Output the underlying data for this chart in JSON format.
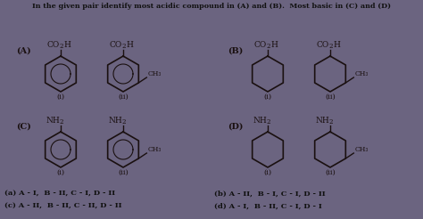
{
  "title": "In the given pair identify most acidic compound in (A) and (B).  Most basic in (C) and (D)",
  "bg_color": "#6b6480",
  "text_color": "#1a1010",
  "answers": [
    "(a) A - I,  B - II, C - I, D - II",
    "(c) A - II,  B - II, C - II, D - II",
    "(b) A - II,  B - I, C - I, D - II",
    "(d) A - I,  B - II, C - I, D - I"
  ],
  "section_labels": [
    "(A)",
    "(B)",
    "(C)",
    "(D)"
  ]
}
